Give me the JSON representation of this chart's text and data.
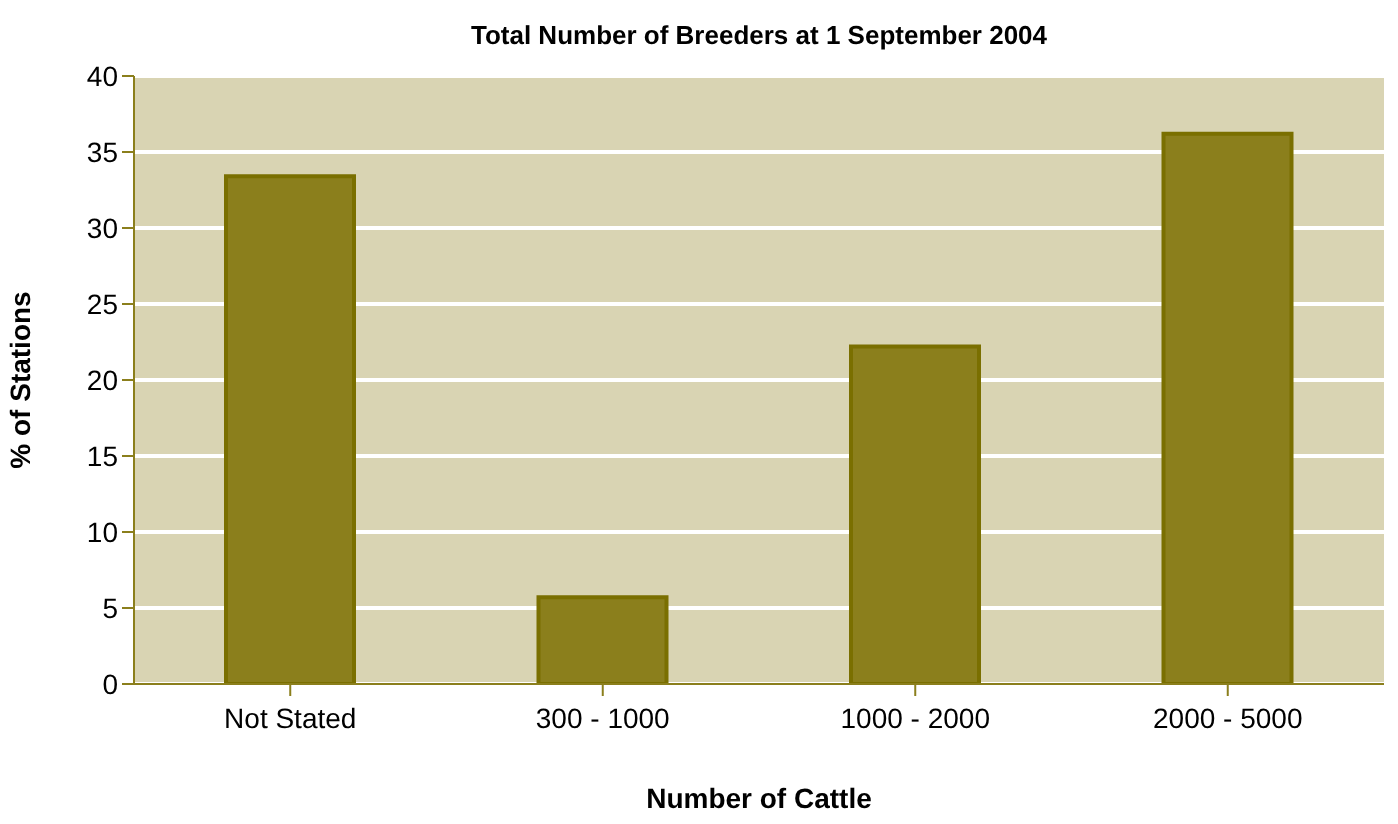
{
  "chart_data": {
    "type": "bar",
    "title": "Total Number of Breeders at 1 September 2004",
    "xlabel": "Number of Cattle",
    "ylabel": "% of Stations",
    "categories": [
      "Not Stated",
      "300 - 1000",
      "1000 - 2000",
      "2000 - 5000"
    ],
    "values": [
      33.4,
      5.7,
      22.2,
      36.2
    ],
    "color": "#8b7f1c",
    "ylim": [
      0,
      40
    ],
    "yticks": [
      0,
      5,
      10,
      15,
      20,
      25,
      30,
      35,
      40
    ],
    "grid": "y"
  }
}
